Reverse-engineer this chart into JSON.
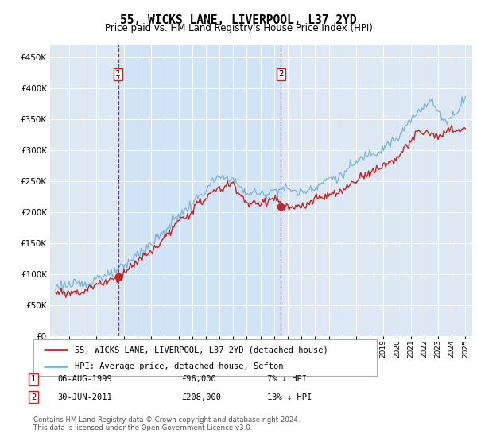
{
  "title": "55, WICKS LANE, LIVERPOOL, L37 2YD",
  "subtitle": "Price paid vs. HM Land Registry's House Price Index (HPI)",
  "hpi_label": "HPI: Average price, detached house, Sefton",
  "property_label": "55, WICKS LANE, LIVERPOOL, L37 2YD (detached house)",
  "footer": "Contains HM Land Registry data © Crown copyright and database right 2024.\nThis data is licensed under the Open Government Licence v3.0.",
  "sale1_year": 1999.58,
  "sale1_price": 96000,
  "sale2_year": 2011.5,
  "sale2_price": 208000,
  "hpi_color": "#7ab4d8",
  "property_color": "#cc2222",
  "sale_marker_color": "#cc2222",
  "shade_color": "#d0e4f5",
  "plot_bg_color": "#dce9f5",
  "ylim": [
    0,
    470000
  ],
  "yticks": [
    0,
    50000,
    100000,
    150000,
    200000,
    250000,
    300000,
    350000,
    400000,
    450000
  ],
  "grid_color": "#ffffff",
  "vline_color": "#cc2222",
  "box_color": "#cc2222",
  "xstart": 1994.6,
  "xend": 2025.5
}
